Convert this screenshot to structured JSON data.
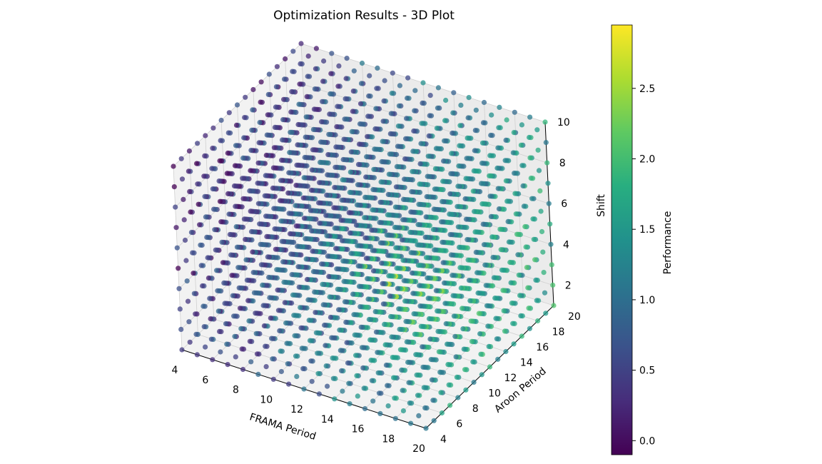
{
  "chart_data": {
    "type": "scatter",
    "projection": "3d",
    "title": "Optimization Results - 3D Plot",
    "xlabel": "FRAMA Period",
    "ylabel": "Aroon Period",
    "zlabel": "Shift",
    "xlim": [
      4,
      20
    ],
    "ylim": [
      4,
      20
    ],
    "zlim": [
      1,
      10
    ],
    "x_grid_values": [
      4,
      5,
      6,
      7,
      8,
      9,
      10,
      11,
      12,
      13,
      14,
      15,
      16,
      17,
      18,
      19,
      20
    ],
    "y_grid_values": [
      4,
      5,
      6,
      7,
      8,
      9,
      10,
      11,
      12,
      13,
      14,
      15,
      16,
      17,
      18,
      19,
      20
    ],
    "z_grid_values": [
      1,
      2,
      3,
      4,
      5,
      6,
      7,
      8,
      9,
      10
    ],
    "x_ticks": [
      "4",
      "6",
      "8",
      "10",
      "12",
      "14",
      "16",
      "18",
      "20"
    ],
    "y_ticks": [
      "4",
      "6",
      "8",
      "10",
      "12",
      "14",
      "16",
      "18",
      "20"
    ],
    "z_ticks": [
      "2",
      "4",
      "6",
      "8",
      "10"
    ],
    "grid": true,
    "colormap": "viridis",
    "colorbar": {
      "label": "Performance",
      "range": [
        -0.1,
        2.95
      ],
      "ticks": [
        "0.0",
        "0.5",
        "1.0",
        "1.5",
        "2.0",
        "2.5"
      ]
    },
    "high_performance_region": {
      "x": [
        12,
        16
      ],
      "y": [
        10,
        14
      ],
      "z": [
        3,
        5
      ],
      "performance": 2.9
    },
    "performance_range": [
      -0.1,
      2.95
    ]
  }
}
